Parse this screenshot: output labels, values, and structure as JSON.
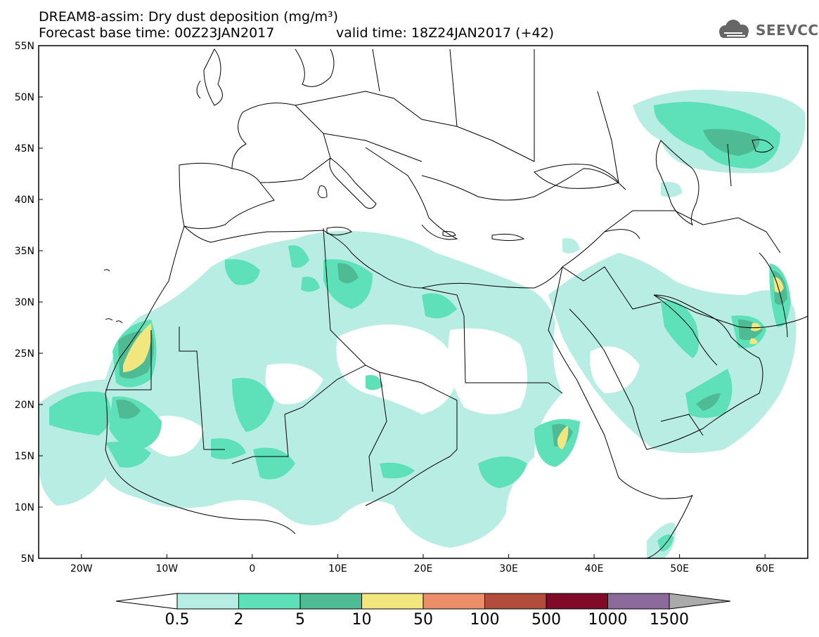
{
  "header": {
    "title": "DREAM8-assim: Dry dust deposition (mg/m³)",
    "base_time": "Forecast base time: 00Z23JAN2017",
    "valid_time": "valid time: 18Z24JAN2017 (+42)"
  },
  "logo": {
    "text": "SEEVCCC",
    "icon": "cloud-icon"
  },
  "map": {
    "lat_range": [
      5,
      55
    ],
    "lon_range": [
      -25,
      65
    ],
    "lat_labels": [
      "55N",
      "50N",
      "45N",
      "40N",
      "35N",
      "30N",
      "25N",
      "20N",
      "15N",
      "10N",
      "5N"
    ],
    "lon_labels": [
      "20W",
      "10W",
      "0",
      "10E",
      "20E",
      "30E",
      "40E",
      "50E",
      "60E"
    ]
  },
  "colorbar": {
    "labels": [
      "0.5",
      "2",
      "5",
      "10",
      "50",
      "100",
      "500",
      "1000",
      "1500"
    ],
    "colors": [
      "#b8ede3",
      "#5ee0b9",
      "#4ebb94",
      "#f2e67e",
      "#ec8e6a",
      "#b24c3c",
      "#800a28",
      "#8c6a9c"
    ],
    "under_color": "#ffffff",
    "over_color": "#aaaaaa"
  }
}
